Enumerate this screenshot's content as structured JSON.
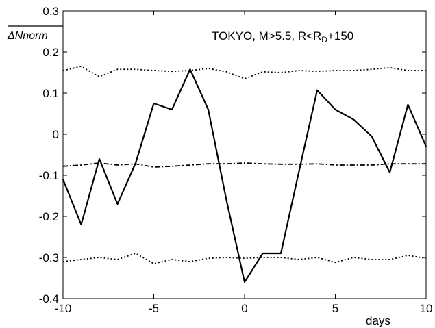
{
  "chart_data": {
    "type": "line",
    "title": "",
    "ylabel": "ΔNnorm",
    "xlabel": "days",
    "annotation": {
      "prefix": "TOKYO,  M>5.5, R<R",
      "subscript": "D",
      "suffix": "+150"
    },
    "xlim": [
      -10,
      10
    ],
    "ylim": [
      -0.4,
      0.3
    ],
    "xticks": [
      "-10",
      "-5",
      "0",
      "5",
      "10"
    ],
    "yticks": [
      "0.3",
      "0.2",
      "0.1",
      "0",
      "-0.1",
      "-0.2",
      "-0.3",
      "-0.4"
    ],
    "grid": false,
    "x": [
      -10,
      -9,
      -8,
      -7,
      -6,
      -5,
      -4,
      -3,
      -2,
      -1,
      0,
      1,
      2,
      3,
      4,
      5,
      6,
      7,
      8,
      9,
      10
    ],
    "series": [
      {
        "style": "solid",
        "values": [
          -0.11,
          -0.22,
          -0.06,
          -0.17,
          -0.07,
          0.075,
          0.06,
          0.158,
          0.06,
          -0.16,
          -0.36,
          -0.29,
          -0.29,
          -0.09,
          0.107,
          0.06,
          0.036,
          -0.005,
          -0.093,
          0.072,
          -0.03
        ]
      },
      {
        "style": "dotted",
        "values": [
          0.155,
          0.165,
          0.14,
          0.158,
          0.158,
          0.155,
          0.153,
          0.155,
          0.16,
          0.152,
          0.135,
          0.152,
          0.15,
          0.155,
          0.153,
          0.155,
          0.155,
          0.158,
          0.162,
          0.155,
          0.155
        ]
      },
      {
        "style": "dashdot",
        "values": [
          -0.078,
          -0.075,
          -0.07,
          -0.075,
          -0.072,
          -0.08,
          -0.078,
          -0.075,
          -0.072,
          -0.072,
          -0.07,
          -0.072,
          -0.073,
          -0.073,
          -0.072,
          -0.075,
          -0.075,
          -0.075,
          -0.072,
          -0.072,
          -0.072
        ]
      },
      {
        "style": "dotted",
        "values": [
          -0.31,
          -0.305,
          -0.3,
          -0.305,
          -0.29,
          -0.315,
          -0.305,
          -0.31,
          -0.302,
          -0.3,
          -0.302,
          -0.3,
          -0.3,
          -0.305,
          -0.3,
          -0.312,
          -0.3,
          -0.305,
          -0.305,
          -0.295,
          -0.302
        ]
      }
    ]
  }
}
